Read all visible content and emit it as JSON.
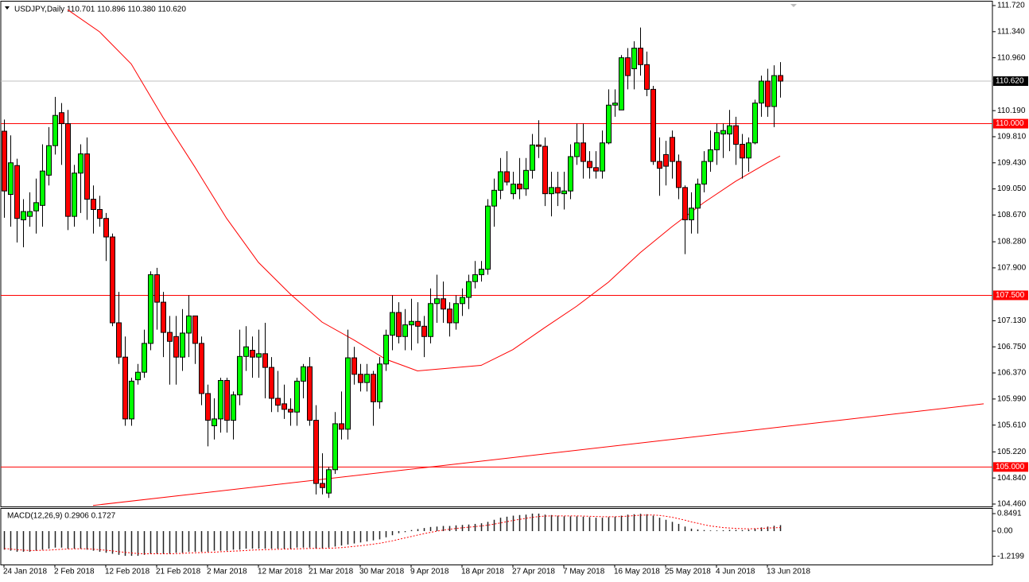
{
  "chart_data": [
    {
      "type": "candlestick",
      "header": "USDJPY,Daily  110.701 110.896 110.380 110.620",
      "up_color": "#00ff00",
      "down_color": "#ff0000",
      "wick_color": "#000000",
      "categories": [
        "24 Jan 2018",
        null,
        null,
        null,
        null,
        null,
        null,
        null,
        "2 Feb 2018",
        null,
        null,
        null,
        null,
        null,
        null,
        null,
        "12 Feb 2018",
        null,
        null,
        null,
        null,
        null,
        null,
        null,
        "21 Feb 2018",
        null,
        null,
        null,
        null,
        null,
        null,
        null,
        "2 Mar 2018",
        null,
        null,
        null,
        null,
        null,
        null,
        null,
        "12 Mar 2018",
        null,
        null,
        null,
        null,
        null,
        null,
        null,
        "21 Mar 2018",
        null,
        null,
        null,
        null,
        null,
        null,
        null,
        "30 Mar 2018",
        null,
        null,
        null,
        null,
        null,
        null,
        null,
        "9 Apr 2018",
        null,
        null,
        null,
        null,
        null,
        null,
        null,
        "18 Apr 2018",
        null,
        null,
        null,
        null,
        null,
        null,
        null,
        "27 Apr 2018",
        null,
        null,
        null,
        null,
        null,
        null,
        null,
        "7 May 2018",
        null,
        null,
        null,
        null,
        null,
        null,
        null,
        "16 May 2018",
        null,
        null,
        null,
        null,
        null,
        null,
        null,
        "25 May 2018",
        null,
        null,
        null,
        null,
        null,
        null,
        null,
        "4 Jun 2018",
        null,
        null,
        null,
        null,
        null,
        null,
        null,
        "13 Jun 2018",
        null,
        null
      ],
      "open": [
        109.89,
        108.97,
        109.39,
        108.6,
        108.65,
        108.73,
        108.81,
        109.25,
        109.68,
        110.16,
        110.0,
        108.65,
        109.28,
        109.56,
        108.9,
        108.75,
        108.62,
        108.35,
        107.1,
        106.6,
        105.7,
        106.27,
        106.38,
        106.8,
        107.8,
        107.4,
        106.96,
        106.9,
        106.6,
        106.95,
        107.2,
        106.8,
        106.07,
        105.6,
        105.7,
        106.26,
        105.68,
        106.05,
        106.61,
        106.7,
        106.6,
        106.65,
        106.45,
        106.0,
        105.92,
        105.84,
        105.8,
        106.25,
        106.46,
        105.68,
        104.76,
        104.62,
        104.96,
        105.63,
        105.55,
        106.59,
        106.35,
        106.23,
        106.35,
        105.95,
        106.5,
        106.92,
        107.25,
        106.9,
        107.07,
        107.12,
        107.05,
        106.9,
        107.38,
        107.45,
        107.3,
        107.1,
        107.38,
        107.47,
        107.7,
        107.8,
        107.88,
        108.8,
        109.03,
        109.3,
        108.98,
        109.12,
        109.05,
        109.32,
        109.69,
        109.67,
        108.98,
        109.07,
        108.98,
        109.02,
        109.52,
        109.72,
        109.45,
        109.36,
        109.31,
        109.72,
        110.27,
        110.2,
        110.96,
        110.8,
        111.1,
        110.86,
        110.5,
        109.45,
        109.55,
        109.8,
        109.45,
        109.07,
        108.6,
        108.77,
        109.12,
        109.45,
        109.62,
        109.85,
        109.85,
        109.97,
        109.7,
        109.5,
        109.72,
        110.3,
        110.62,
        110.25,
        110.701
      ],
      "high": [
        110.06,
        109.83,
        109.49,
        108.9,
        109.0,
        109.2,
        109.7,
        109.95,
        110.39,
        110.3,
        110.2,
        109.4,
        109.7,
        109.8,
        109.1,
        108.95,
        108.7,
        108.4,
        107.55,
        106.9,
        106.3,
        106.5,
        107.0,
        107.85,
        107.9,
        107.55,
        107.2,
        107.2,
        107.3,
        107.5,
        107.2,
        106.9,
        106.2,
        106.0,
        106.3,
        106.3,
        106.1,
        107.0,
        107.05,
        106.9,
        107.0,
        107.1,
        106.6,
        106.4,
        106.2,
        106.0,
        106.3,
        106.5,
        106.6,
        105.9,
        105.2,
        105.0,
        105.8,
        106.1,
        107.0,
        106.75,
        106.5,
        106.5,
        106.4,
        106.6,
        107.0,
        107.5,
        107.4,
        107.3,
        107.45,
        107.4,
        107.2,
        107.6,
        107.8,
        107.7,
        107.4,
        107.5,
        107.6,
        107.8,
        108.0,
        108.0,
        108.9,
        109.2,
        109.5,
        109.6,
        109.3,
        109.5,
        109.5,
        109.85,
        110.05,
        109.8,
        109.3,
        109.3,
        109.3,
        109.7,
        110.0,
        110.0,
        109.6,
        109.6,
        109.9,
        110.5,
        110.5,
        111.0,
        111.1,
        111.2,
        111.4,
        111.05,
        110.55,
        109.8,
        109.75,
        109.9,
        109.55,
        109.1,
        109.0,
        109.2,
        109.6,
        109.9,
        110.0,
        110.0,
        110.2,
        110.1,
        109.85,
        109.8,
        110.35,
        110.7,
        110.8,
        110.85,
        110.896
      ],
      "low": [
        108.63,
        108.5,
        108.27,
        108.2,
        108.5,
        108.4,
        108.5,
        109.1,
        109.55,
        109.4,
        108.45,
        108.5,
        108.7,
        108.6,
        108.4,
        108.5,
        108.0,
        107.05,
        106.5,
        105.6,
        105.6,
        106.2,
        106.3,
        106.7,
        107.0,
        106.6,
        106.2,
        106.2,
        106.4,
        106.6,
        106.5,
        105.9,
        105.3,
        105.4,
        105.5,
        105.5,
        105.4,
        105.9,
        106.4,
        106.3,
        106.3,
        106.0,
        105.8,
        105.8,
        105.7,
        105.6,
        105.6,
        106.0,
        105.6,
        104.6,
        104.6,
        104.55,
        104.9,
        105.4,
        105.4,
        106.2,
        106.1,
        106.1,
        105.6,
        105.85,
        106.4,
        106.7,
        106.8,
        106.7,
        106.7,
        106.8,
        106.6,
        106.8,
        107.1,
        107.1,
        106.9,
        107.0,
        107.2,
        107.3,
        107.6,
        107.7,
        107.8,
        108.5,
        108.9,
        109.1,
        108.9,
        108.9,
        108.95,
        109.2,
        109.5,
        108.8,
        108.65,
        108.8,
        108.75,
        108.9,
        109.4,
        109.2,
        109.2,
        109.2,
        109.2,
        109.7,
        110.1,
        110.2,
        110.5,
        110.5,
        110.7,
        110.4,
        109.4,
        108.95,
        109.1,
        109.2,
        108.9,
        108.1,
        108.4,
        108.4,
        109.0,
        109.3,
        109.4,
        109.5,
        109.6,
        109.4,
        109.2,
        109.3,
        109.7,
        110.1,
        110.1,
        109.95,
        110.38
      ],
      "close": [
        109.02,
        109.43,
        108.62,
        108.72,
        108.72,
        108.85,
        109.31,
        109.68,
        110.12,
        110.0,
        108.65,
        109.28,
        109.56,
        108.9,
        108.75,
        108.62,
        108.35,
        107.1,
        106.6,
        105.7,
        106.25,
        106.38,
        106.8,
        107.8,
        107.4,
        106.96,
        106.83,
        106.6,
        106.95,
        107.2,
        106.8,
        106.07,
        105.68,
        105.7,
        106.26,
        105.68,
        106.05,
        106.61,
        106.75,
        106.6,
        106.65,
        106.45,
        106.0,
        105.9,
        105.84,
        105.8,
        106.25,
        106.46,
        105.68,
        104.76,
        104.7,
        104.96,
        105.63,
        105.55,
        106.59,
        106.35,
        106.23,
        106.35,
        105.95,
        106.5,
        106.92,
        107.25,
        106.9,
        107.07,
        107.12,
        107.05,
        106.9,
        107.38,
        107.45,
        107.3,
        107.1,
        107.38,
        107.47,
        107.7,
        107.8,
        107.88,
        108.8,
        109.03,
        109.3,
        109.15,
        109.12,
        109.05,
        109.32,
        109.69,
        109.67,
        108.98,
        109.07,
        108.99,
        109.02,
        109.52,
        109.72,
        109.45,
        109.36,
        109.31,
        109.72,
        110.27,
        110.3,
        110.96,
        110.7,
        111.1,
        110.86,
        110.5,
        109.45,
        109.35,
        109.38,
        109.45,
        109.07,
        108.6,
        108.77,
        109.12,
        109.45,
        109.62,
        109.87,
        109.9,
        109.97,
        109.7,
        109.5,
        109.72,
        110.3,
        110.62,
        110.25,
        110.7,
        110.62
      ],
      "ma": {
        "color": "#ff0000",
        "x": [
          10,
          15,
          20,
          25,
          30,
          35,
          40,
          45,
          50,
          55,
          60,
          65,
          70,
          75,
          80,
          85,
          90,
          95,
          100,
          105,
          110,
          115,
          120,
          122
        ],
        "values": [
          111.66,
          111.34,
          110.87,
          110.09,
          109.37,
          108.62,
          107.98,
          107.52,
          107.11,
          106.85,
          106.57,
          106.4,
          106.44,
          106.48,
          106.71,
          107.03,
          107.34,
          107.69,
          108.12,
          108.5,
          108.85,
          109.16,
          109.43,
          109.53
        ]
      },
      "trendline": {
        "color": "#ff0000",
        "x": [
          14,
          154
        ],
        "values": [
          104.44,
          105.92
        ]
      },
      "levels": [
        {
          "value": 110,
          "label": "110.000"
        },
        {
          "value": 107.5,
          "label": "107.500"
        },
        {
          "value": 105,
          "label": "105.000"
        }
      ],
      "level_color": "#ff0000",
      "current_price": {
        "value": 110.62,
        "label": "110.620"
      },
      "ylim": [
        104.425,
        111.778
      ],
      "yticks": [
        {
          "value": 111.72,
          "label": "111.720"
        },
        {
          "value": 111.34,
          "label": "111.340"
        },
        {
          "value": 110.96,
          "label": "110.960"
        },
        {
          "value": 110.19,
          "label": "110.190"
        },
        {
          "value": 109.81,
          "label": "109.810"
        },
        {
          "value": 109.43,
          "label": "109.430"
        },
        {
          "value": 109.05,
          "label": "109.050"
        },
        {
          "value": 108.67,
          "label": "108.670"
        },
        {
          "value": 108.28,
          "label": "108.280"
        },
        {
          "value": 107.9,
          "label": "107.900"
        },
        {
          "value": 107.13,
          "label": "107.130"
        },
        {
          "value": 106.75,
          "label": "106.750"
        },
        {
          "value": 106.37,
          "label": "106.370"
        },
        {
          "value": 105.99,
          "label": "105.990"
        },
        {
          "value": 105.61,
          "label": "105.610"
        },
        {
          "value": 105.22,
          "label": "105.220"
        },
        {
          "value": 104.84,
          "label": "104.840"
        },
        {
          "value": 104.46,
          "label": "104.460"
        }
      ]
    },
    {
      "type": "macd",
      "title": "MACD(12,26,9) 0.2906 0.1727",
      "color": "#222222",
      "signal_color": "#ff0000",
      "macd": [
        -0.9,
        -0.95,
        -1.0,
        -1.0,
        -1.0,
        -0.95,
        -0.9,
        -0.85,
        -0.8,
        -0.8,
        -0.85,
        -0.85,
        -0.85,
        -0.9,
        -0.95,
        -1.0,
        -1.05,
        -1.1,
        -1.15,
        -1.2,
        -1.2,
        -1.2,
        -1.15,
        -1.1,
        -1.1,
        -1.1,
        -1.1,
        -1.05,
        -1.05,
        -1.0,
        -1.0,
        -1.0,
        -1.0,
        -0.95,
        -0.95,
        -0.95,
        -0.9,
        -0.9,
        -0.85,
        -0.85,
        -0.85,
        -0.85,
        -0.85,
        -0.85,
        -0.85,
        -0.85,
        -0.8,
        -0.8,
        -0.8,
        -0.85,
        -0.85,
        -0.8,
        -0.75,
        -0.7,
        -0.65,
        -0.6,
        -0.55,
        -0.5,
        -0.45,
        -0.4,
        -0.3,
        -0.2,
        -0.1,
        -0.05,
        0.05,
        0.1,
        0.15,
        0.2,
        0.22,
        0.25,
        0.25,
        0.28,
        0.3,
        0.32,
        0.35,
        0.38,
        0.45,
        0.55,
        0.65,
        0.7,
        0.75,
        0.78,
        0.8,
        0.85,
        0.85,
        0.8,
        0.78,
        0.75,
        0.72,
        0.72,
        0.72,
        0.7,
        0.68,
        0.65,
        0.65,
        0.68,
        0.7,
        0.75,
        0.8,
        0.82,
        0.84,
        0.82,
        0.75,
        0.65,
        0.55,
        0.45,
        0.35,
        0.22,
        0.12,
        0.08,
        0.05,
        0.03,
        0.03,
        0.04,
        0.06,
        0.06,
        0.05,
        0.07,
        0.12,
        0.18,
        0.22,
        0.26,
        0.2906
      ],
      "signal": [
        -0.85,
        -0.87,
        -0.9,
        -0.92,
        -0.94,
        -0.94,
        -0.93,
        -0.92,
        -0.9,
        -0.88,
        -0.87,
        -0.86,
        -0.86,
        -0.86,
        -0.88,
        -0.9,
        -0.93,
        -0.96,
        -1.0,
        -1.03,
        -1.06,
        -1.09,
        -1.1,
        -1.1,
        -1.1,
        -1.1,
        -1.1,
        -1.09,
        -1.08,
        -1.06,
        -1.05,
        -1.04,
        -1.03,
        -1.02,
        -1.0,
        -0.99,
        -0.97,
        -0.96,
        -0.94,
        -0.92,
        -0.91,
        -0.9,
        -0.89,
        -0.88,
        -0.87,
        -0.87,
        -0.86,
        -0.85,
        -0.84,
        -0.84,
        -0.84,
        -0.83,
        -0.82,
        -0.8,
        -0.77,
        -0.74,
        -0.71,
        -0.67,
        -0.63,
        -0.59,
        -0.53,
        -0.47,
        -0.4,
        -0.33,
        -0.26,
        -0.19,
        -0.12,
        -0.06,
        0.0,
        0.05,
        0.09,
        0.13,
        0.16,
        0.19,
        0.22,
        0.25,
        0.29,
        0.34,
        0.4,
        0.46,
        0.52,
        0.57,
        0.62,
        0.67,
        0.71,
        0.73,
        0.74,
        0.74,
        0.74,
        0.74,
        0.74,
        0.73,
        0.72,
        0.71,
        0.7,
        0.7,
        0.7,
        0.71,
        0.73,
        0.75,
        0.77,
        0.78,
        0.78,
        0.76,
        0.72,
        0.67,
        0.6,
        0.53,
        0.45,
        0.38,
        0.31,
        0.25,
        0.21,
        0.17,
        0.15,
        0.13,
        0.12,
        0.11,
        0.12,
        0.13,
        0.15,
        0.16,
        0.1727
      ],
      "ylim": [
        -1.62,
        1.08
      ],
      "yticks": [
        0.8491,
        {
          "value": 0,
          "label": "0.00"
        },
        -1.2199
      ]
    }
  ]
}
